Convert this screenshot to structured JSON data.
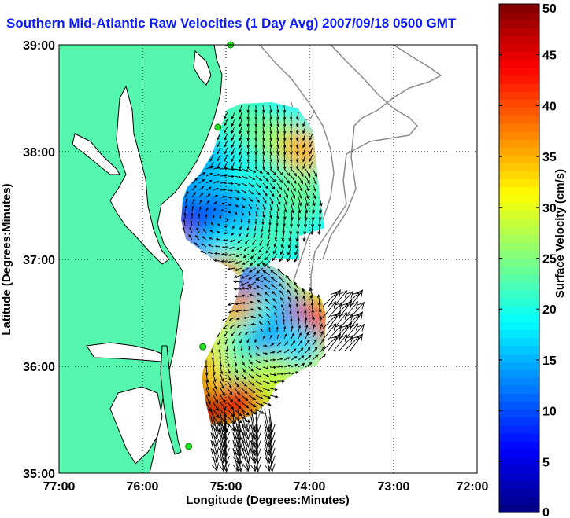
{
  "chart_data": {
    "type": "heatmap",
    "title": "Southern Mid-Atlantic Raw Velocities (1 Day Avg) 2007/09/18 0500 GMT",
    "xlabel": "Longitude (Degrees:Minutes)",
    "ylabel": "Latitude (Degrees:Minutes)",
    "x_ticks": [
      "77:00",
      "76:00",
      "75:00",
      "74:00",
      "73:00",
      "72:00"
    ],
    "y_ticks": [
      "39:00",
      "38:00",
      "37:00",
      "36:00",
      "35:00"
    ],
    "xlim": [
      -77,
      -72
    ],
    "ylim": [
      35,
      39
    ],
    "grid": true,
    "colorbar": {
      "label": "Surface Velocity (cm/s)",
      "range": [
        0,
        50
      ],
      "ticks": [
        0,
        5,
        10,
        15,
        20,
        25,
        30,
        35,
        40,
        45,
        50
      ]
    },
    "colors": {
      "land": "#55f7ae",
      "title": "#0a1cff",
      "station_marker": "#22dd22"
    },
    "regions": [
      {
        "name": "northern-field",
        "cells": [
          {
            "lon": -75.35,
            "lat": 38.2,
            "v": 14
          },
          {
            "lon": -75.1,
            "lat": 38.3,
            "v": 20
          },
          {
            "lon": -74.8,
            "lat": 38.3,
            "v": 23
          },
          {
            "lon": -74.4,
            "lat": 38.1,
            "v": 26
          },
          {
            "lon": -74.1,
            "lat": 38.0,
            "v": 35
          },
          {
            "lon": -75.6,
            "lat": 37.75,
            "v": 13
          },
          {
            "lon": -75.3,
            "lat": 37.85,
            "v": 14
          },
          {
            "lon": -75.0,
            "lat": 37.8,
            "v": 16
          },
          {
            "lon": -74.7,
            "lat": 37.8,
            "v": 20
          },
          {
            "lon": -74.4,
            "lat": 37.7,
            "v": 21
          },
          {
            "lon": -74.1,
            "lat": 37.6,
            "v": 24
          },
          {
            "lon": -75.55,
            "lat": 37.3,
            "v": 6
          },
          {
            "lon": -75.35,
            "lat": 37.35,
            "v": 5
          },
          {
            "lon": -75.05,
            "lat": 37.4,
            "v": 10
          },
          {
            "lon": -74.7,
            "lat": 37.4,
            "v": 15
          },
          {
            "lon": -74.35,
            "lat": 37.3,
            "v": 22
          },
          {
            "lon": -75.6,
            "lat": 37.05,
            "v": 34
          },
          {
            "lon": -75.3,
            "lat": 37.05,
            "v": 13
          },
          {
            "lon": -75.0,
            "lat": 37.1,
            "v": 18
          },
          {
            "lon": -74.7,
            "lat": 37.05,
            "v": 22
          },
          {
            "lon": -75.05,
            "lat": 36.8,
            "v": 36
          }
        ]
      },
      {
        "name": "southern-field",
        "cells": [
          {
            "lon": -74.85,
            "lat": 36.8,
            "v": 12
          },
          {
            "lon": -74.55,
            "lat": 36.75,
            "v": 14
          },
          {
            "lon": -75.05,
            "lat": 36.5,
            "v": 28
          },
          {
            "lon": -74.75,
            "lat": 36.5,
            "v": 38
          },
          {
            "lon": -74.45,
            "lat": 36.45,
            "v": 20
          },
          {
            "lon": -74.15,
            "lat": 36.45,
            "v": 12
          },
          {
            "lon": -73.95,
            "lat": 36.4,
            "v": 44
          },
          {
            "lon": -75.35,
            "lat": 36.1,
            "v": 47
          },
          {
            "lon": -75.05,
            "lat": 36.2,
            "v": 30
          },
          {
            "lon": -74.75,
            "lat": 36.2,
            "v": 21
          },
          {
            "lon": -74.45,
            "lat": 36.2,
            "v": 13
          },
          {
            "lon": -74.15,
            "lat": 36.2,
            "v": 17
          },
          {
            "lon": -75.35,
            "lat": 35.8,
            "v": 46
          },
          {
            "lon": -75.05,
            "lat": 35.85,
            "v": 33
          },
          {
            "lon": -74.75,
            "lat": 35.9,
            "v": 24
          },
          {
            "lon": -74.45,
            "lat": 35.9,
            "v": 28
          },
          {
            "lon": -75.25,
            "lat": 35.55,
            "v": 48
          },
          {
            "lon": -74.85,
            "lat": 35.65,
            "v": 45
          }
        ]
      }
    ],
    "stations": [
      {
        "lon": -74.95,
        "lat": 39.0
      },
      {
        "lon": -75.1,
        "lat": 38.23
      },
      {
        "lon": -75.28,
        "lat": 36.18
      },
      {
        "lon": -75.45,
        "lat": 35.25
      }
    ]
  }
}
